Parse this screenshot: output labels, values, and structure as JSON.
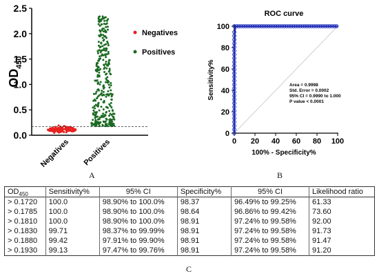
{
  "chart_data": [
    {
      "type": "scatter",
      "panel": "A",
      "ylabel": "OD",
      "ylabel_sub": "450",
      "ylim": [
        0,
        2.5
      ],
      "yticks": [
        "0.0",
        "0.5",
        "1.0",
        "1.5",
        "2.0",
        "2.5"
      ],
      "categories": [
        "Negatives",
        "Positives"
      ],
      "cutoff": 0.172,
      "series": [
        {
          "name": "Negatives",
          "color": "#e8201e",
          "ymin": 0.03,
          "ymax": 0.21,
          "n": 120
        },
        {
          "name": "Positives",
          "color": "#1c6b22",
          "ymin": 0.18,
          "ymax": 2.37,
          "n": 340
        }
      ]
    },
    {
      "type": "line",
      "panel": "B",
      "title": "ROC curve",
      "xlabel": "100% - Specificity%",
      "ylabel": "Sensitivity%",
      "xlim": [
        0,
        100
      ],
      "ylim": [
        0,
        100
      ],
      "xticks": [
        "0",
        "20",
        "40",
        "60",
        "80",
        "100"
      ],
      "yticks": [
        "0",
        "20",
        "40",
        "60",
        "80",
        "100"
      ],
      "line_color": "#1f2fb8",
      "points": [
        [
          0,
          0
        ],
        [
          0,
          20
        ],
        [
          0,
          40
        ],
        [
          0,
          60
        ],
        [
          0,
          80
        ],
        [
          0.5,
          95
        ],
        [
          1,
          98.5
        ],
        [
          1.36,
          99.13
        ],
        [
          1.63,
          100
        ],
        [
          5,
          100
        ],
        [
          20,
          100
        ],
        [
          40,
          100
        ],
        [
          60,
          100
        ],
        [
          80,
          100
        ],
        [
          100,
          100
        ]
      ],
      "annotations": [
        "Area = 0.9998",
        "Std. Error = 0.0002",
        "95% CI = 0.9990 to 1.000",
        "P value < 0.0001"
      ]
    }
  ],
  "panels": {
    "a": "A",
    "b": "B",
    "c": "C"
  },
  "table": {
    "od_label": "OD",
    "od_sub": "450",
    "headers": [
      "Sensitivity%",
      "95% CI",
      "Specificity%",
      "95% CI",
      "Likelihood ratio"
    ],
    "rows": [
      [
        "> 0.1720",
        "100.0",
        "98.90% to 100.0%",
        "98.37",
        "96.49% to 99.25%",
        "61.33"
      ],
      [
        "> 0.1785",
        "100.0",
        "98.90% to 100.0%",
        "98.64",
        "96.86% to 99.42%",
        "73.60"
      ],
      [
        "> 0.1810",
        "100.0",
        "98.90% to 100.0%",
        "98.91",
        "97.24% to 99.58%",
        "92.00"
      ],
      [
        "> 0.1830",
        "99.71",
        "98.37% to 99.99%",
        "98.91",
        "97.24% to 99.58%",
        "91.73"
      ],
      [
        "> 0.1880",
        "99.42",
        "97.91% to 99.90%",
        "98.91",
        "97.24% to 99.58%",
        "91.47"
      ],
      [
        "> 0.1930",
        "99.13",
        "97.47% to 99.76%",
        "98.91",
        "97.24% to 99.58%",
        "91.20"
      ]
    ]
  }
}
